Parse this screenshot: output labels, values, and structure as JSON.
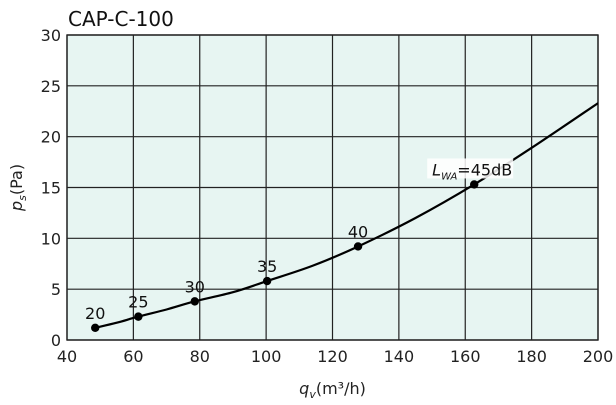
{
  "chart_data": {
    "type": "line",
    "title": "CAP-C-100",
    "xlabel": {
      "main": "q",
      "sub": "v",
      "unit": "(m³/h)"
    },
    "ylabel": {
      "main": "p",
      "sub": "s",
      "unit": "(Pa)"
    },
    "xlim": [
      40,
      200
    ],
    "ylim": [
      0,
      30
    ],
    "x_ticks": [
      40,
      60,
      80,
      100,
      120,
      140,
      160,
      180,
      200
    ],
    "y_ticks": [
      0,
      5,
      10,
      15,
      20,
      25,
      30
    ],
    "grid": true,
    "colors": {
      "plot_background": "#e7f5f2",
      "grid": "#222222",
      "curve": "#000000"
    },
    "series": [
      {
        "x": [
          48.5,
          55,
          61.5,
          70,
          78.5,
          90,
          100.3,
          114,
          127.7,
          145,
          162.7,
          180,
          200
        ],
        "y": [
          1.2,
          1.7,
          2.3,
          3.0,
          3.8,
          4.7,
          5.8,
          7.3,
          9.2,
          12.0,
          15.3,
          18.9,
          23.3
        ]
      }
    ],
    "markers": [
      {
        "x": 48.5,
        "y": 1.2,
        "label": "20"
      },
      {
        "x": 61.5,
        "y": 2.3,
        "label": "25"
      },
      {
        "x": 78.5,
        "y": 3.8,
        "label": "30"
      },
      {
        "x": 100.3,
        "y": 5.8,
        "label": "35"
      },
      {
        "x": 127.7,
        "y": 9.2,
        "label": "40"
      },
      {
        "x": 162.7,
        "y": 15.3,
        "label": "45dB",
        "prefix_main": "L",
        "prefix_sub": "WA",
        "prefix_sign": "="
      }
    ]
  }
}
